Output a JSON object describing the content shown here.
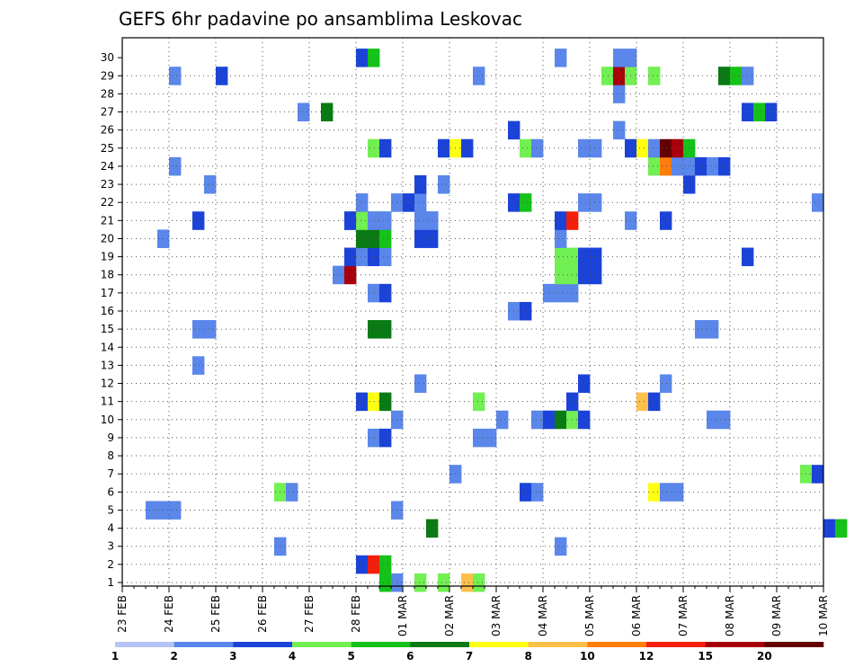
{
  "chart_data": {
    "type": "heatmap",
    "title": "GEFS 6hr padavine po ansamblima Leskovac",
    "xlabel": "",
    "ylabel": "",
    "x_tick_labels": [
      "23 FEB",
      "24 FEB",
      "25 FEB",
      "26 FEB",
      "27 FEB",
      "28 FEB",
      "01 MAR",
      "02 MAR",
      "03 MAR",
      "04 MAR",
      "05 MAR",
      "06 MAR",
      "07 MAR",
      "08 MAR",
      "09 MAR",
      "10 MAR"
    ],
    "y_tick_labels": [
      "1",
      "2",
      "3",
      "4",
      "5",
      "6",
      "7",
      "8",
      "9",
      "10",
      "11",
      "12",
      "13",
      "14",
      "15",
      "16",
      "17",
      "18",
      "19",
      "20",
      "21",
      "22",
      "23",
      "24",
      "25",
      "26",
      "27",
      "28",
      "29",
      "30"
    ],
    "xlim_steps": [
      0,
      60
    ],
    "ylim": [
      0,
      30
    ],
    "grid": true,
    "colorbar": {
      "labels": [
        "1",
        "2",
        "3",
        "4",
        "5",
        "6",
        "7",
        "8",
        "10",
        "12",
        "15",
        "20"
      ],
      "colors": [
        "#b4c5f5",
        "#5b86ea",
        "#1b43d7",
        "#72ef53",
        "#14c219",
        "#0a7a14",
        "#ffff14",
        "#ffc04a",
        "#ff7d0a",
        "#f51e0a",
        "#a8000a",
        "#640000"
      ]
    },
    "cells": [
      [
        20,
        1,
        2
      ],
      [
        21,
        1,
        9
      ],
      [
        22,
        1,
        4
      ],
      [
        22,
        0,
        4
      ],
      [
        23,
        0,
        1
      ],
      [
        25,
        0,
        3
      ],
      [
        27,
        0,
        3
      ],
      [
        29,
        0,
        7
      ],
      [
        30,
        0,
        3
      ],
      [
        13,
        2,
        1
      ],
      [
        37,
        2,
        1
      ],
      [
        26,
        3,
        5
      ],
      [
        60,
        3,
        2
      ],
      [
        61,
        3,
        4
      ],
      [
        2,
        4,
        1
      ],
      [
        3,
        4,
        1
      ],
      [
        4,
        4,
        1
      ],
      [
        23,
        4,
        1
      ],
      [
        13,
        5,
        3
      ],
      [
        14,
        5,
        1
      ],
      [
        34,
        5,
        2
      ],
      [
        35,
        5,
        1
      ],
      [
        45,
        5,
        6
      ],
      [
        46,
        5,
        1
      ],
      [
        47,
        5,
        1
      ],
      [
        28,
        6,
        1
      ],
      [
        58,
        6,
        3
      ],
      [
        59,
        6,
        2
      ],
      [
        21,
        8,
        1
      ],
      [
        22,
        8,
        2
      ],
      [
        30,
        8,
        1
      ],
      [
        31,
        8,
        1
      ],
      [
        23,
        9,
        1
      ],
      [
        32,
        9,
        1
      ],
      [
        35,
        9,
        1
      ],
      [
        36,
        9,
        2
      ],
      [
        37,
        9,
        5
      ],
      [
        38,
        9,
        3
      ],
      [
        39,
        9,
        2
      ],
      [
        50,
        9,
        1
      ],
      [
        51,
        9,
        1
      ],
      [
        20,
        10,
        2
      ],
      [
        21,
        10,
        6
      ],
      [
        22,
        10,
        5
      ],
      [
        30,
        10,
        3
      ],
      [
        38,
        10,
        2
      ],
      [
        44,
        10,
        7
      ],
      [
        45,
        10,
        2
      ],
      [
        25,
        11,
        1
      ],
      [
        39,
        11,
        2
      ],
      [
        46,
        11,
        1
      ],
      [
        6,
        12,
        1
      ],
      [
        6,
        14,
        1
      ],
      [
        7,
        14,
        1
      ],
      [
        21,
        14,
        5
      ],
      [
        22,
        14,
        5
      ],
      [
        49,
        14,
        1
      ],
      [
        50,
        14,
        1
      ],
      [
        33,
        15,
        1
      ],
      [
        34,
        15,
        2
      ],
      [
        21,
        16,
        1
      ],
      [
        22,
        16,
        2
      ],
      [
        36,
        16,
        1
      ],
      [
        37,
        16,
        1
      ],
      [
        38,
        16,
        1
      ],
      [
        18,
        17,
        1
      ],
      [
        19,
        17,
        10
      ],
      [
        37,
        17,
        3
      ],
      [
        38,
        17,
        3
      ],
      [
        39,
        17,
        2
      ],
      [
        40,
        17,
        2
      ],
      [
        19,
        18,
        2
      ],
      [
        20,
        18,
        1
      ],
      [
        21,
        18,
        2
      ],
      [
        22,
        18,
        1
      ],
      [
        37,
        18,
        3
      ],
      [
        38,
        18,
        3
      ],
      [
        39,
        18,
        2
      ],
      [
        40,
        18,
        2
      ],
      [
        53,
        18,
        2
      ],
      [
        20,
        19,
        5
      ],
      [
        21,
        19,
        5
      ],
      [
        22,
        19,
        4
      ],
      [
        25,
        19,
        2
      ],
      [
        26,
        19,
        2
      ],
      [
        37,
        19,
        1
      ],
      [
        3,
        19,
        1
      ],
      [
        19,
        20,
        2
      ],
      [
        20,
        20,
        5
      ],
      [
        21,
        20,
        5
      ],
      [
        22,
        20,
        4
      ],
      [
        25,
        20,
        2
      ],
      [
        26,
        20,
        2
      ],
      [
        37,
        20,
        1
      ],
      [
        6,
        20,
        2
      ],
      [
        19,
        20,
        2
      ],
      [
        20,
        20,
        3
      ],
      [
        21,
        20,
        1
      ],
      [
        22,
        20,
        1
      ],
      [
        25,
        20,
        1
      ],
      [
        26,
        20,
        1
      ],
      [
        37,
        20,
        2
      ],
      [
        38,
        20,
        9
      ],
      [
        43,
        20,
        1
      ],
      [
        46,
        20,
        2
      ],
      [
        20,
        21,
        1
      ],
      [
        23,
        21,
        1
      ],
      [
        24,
        21,
        2
      ],
      [
        25,
        21,
        1
      ],
      [
        33,
        21,
        2
      ],
      [
        34,
        21,
        4
      ],
      [
        39,
        21,
        1
      ],
      [
        40,
        21,
        1
      ],
      [
        59,
        21,
        1
      ],
      [
        7,
        22,
        1
      ],
      [
        25,
        22,
        2
      ],
      [
        27,
        22,
        1
      ],
      [
        48,
        22,
        2
      ],
      [
        4,
        23,
        1
      ],
      [
        45,
        23,
        3
      ],
      [
        46,
        23,
        8
      ],
      [
        47,
        23,
        1
      ],
      [
        48,
        23,
        1
      ],
      [
        49,
        23,
        2
      ],
      [
        50,
        23,
        1
      ],
      [
        51,
        23,
        2
      ],
      [
        21,
        24,
        3
      ],
      [
        22,
        24,
        2
      ],
      [
        27,
        24,
        2
      ],
      [
        28,
        24,
        6
      ],
      [
        29,
        24,
        2
      ],
      [
        34,
        24,
        3
      ],
      [
        35,
        24,
        1
      ],
      [
        39,
        24,
        1
      ],
      [
        40,
        24,
        1
      ],
      [
        43,
        24,
        2
      ],
      [
        44,
        24,
        6
      ],
      [
        45,
        24,
        1
      ],
      [
        46,
        24,
        11
      ],
      [
        47,
        24,
        10
      ],
      [
        48,
        24,
        4
      ],
      [
        33,
        25,
        2
      ],
      [
        42,
        25,
        1
      ],
      [
        15,
        26,
        1
      ],
      [
        17,
        26,
        5
      ],
      [
        53,
        26,
        2
      ],
      [
        54,
        26,
        4
      ],
      [
        55,
        26,
        2
      ],
      [
        42,
        27,
        1
      ],
      [
        4,
        28,
        1
      ],
      [
        8,
        28,
        2
      ],
      [
        30,
        28,
        1
      ],
      [
        41,
        28,
        3
      ],
      [
        42,
        28,
        10
      ],
      [
        43,
        28,
        3
      ],
      [
        45,
        28,
        3
      ],
      [
        51,
        28,
        5
      ],
      [
        52,
        28,
        4
      ],
      [
        53,
        28,
        1
      ],
      [
        20,
        29,
        2
      ],
      [
        21,
        29,
        4
      ],
      [
        37,
        29,
        1
      ],
      [
        42,
        29,
        1
      ],
      [
        43,
        29,
        1
      ]
    ]
  }
}
